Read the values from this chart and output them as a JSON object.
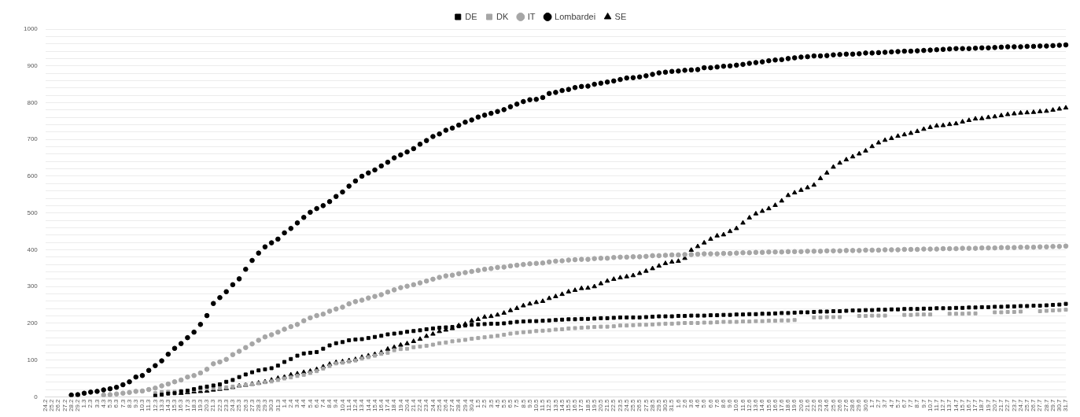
{
  "chart_data": {
    "type": "scatter",
    "legend": "top",
    "grid": "y",
    "categories": [
      "24.2",
      "25.2",
      "26.2",
      "27.2",
      "28.2",
      "29.2",
      "1.3",
      "2.3",
      "3.3",
      "4.3",
      "5.3",
      "6.3",
      "7.3",
      "8.3",
      "9.3",
      "10.3",
      "11.3",
      "12.3",
      "13.3",
      "14.3",
      "15.3",
      "16.3",
      "17.3",
      "18.3",
      "19.3",
      "20.3",
      "21.3",
      "22.3",
      "23.3",
      "24.3",
      "25.3",
      "26.3",
      "27.3",
      "28.3",
      "29.3",
      "30.3",
      "31.3",
      "1.4",
      "2.4",
      "3.4",
      "4.4",
      "5.4",
      "6.4",
      "7.4",
      "8.4",
      "9.4",
      "10.4",
      "11.4",
      "12.4",
      "13.4",
      "14.4",
      "15.4",
      "16.4",
      "17.4",
      "18.4",
      "19.4",
      "20.4",
      "21.4",
      "22.4",
      "23.4",
      "24.4",
      "25.4",
      "26.4",
      "27.4",
      "28.4",
      "29.4",
      "30.4",
      "1.5",
      "2.5",
      "3.5",
      "4.5",
      "5.5",
      "6.5",
      "7.5",
      "8.5",
      "9.5",
      "10.5",
      "11.5",
      "12.5",
      "13.5",
      "14.5",
      "15.5",
      "16.5",
      "17.5",
      "18.5",
      "19.5",
      "20.5",
      "21.5",
      "22.5",
      "23.5",
      "24.5",
      "25.5",
      "26.5",
      "27.5",
      "28.5",
      "29.5",
      "30.5",
      "31.5",
      "1.6",
      "2.6",
      "3.6",
      "4.6",
      "5.6",
      "6.6",
      "7.6",
      "8.6",
      "9.6",
      "10.6",
      "11.6",
      "12.6",
      "13.6",
      "14.6",
      "15.6",
      "16.6",
      "17.6",
      "18.6",
      "19.6",
      "20.6",
      "21.6",
      "22.6",
      "23.6",
      "24.6",
      "25.6",
      "26.6",
      "27.6",
      "28.6",
      "29.6",
      "30.6",
      "1.7",
      "2.7",
      "3.7",
      "4.7",
      "5.7",
      "6.7",
      "7.7",
      "8.7",
      "9.7",
      "10.7",
      "11.7",
      "12.7",
      "13.7",
      "14.7",
      "15.7",
      "16.7",
      "17.7",
      "18.7",
      "19.7",
      "20.7",
      "21.7",
      "22.7",
      "23.7",
      "24.7",
      "25.7",
      "26.7",
      "27.7",
      "28.7",
      "29.7",
      "30.7",
      "31.7"
    ],
    "ylim": [
      0,
      1000
    ],
    "yticks": [
      0,
      {
        "value": 20,
        "label": null
      },
      {
        "value": 40,
        "label": null
      },
      {
        "value": 60,
        "label": null
      },
      {
        "value": 80,
        "label": null
      },
      100,
      {
        "value": 120,
        "label": null
      },
      {
        "value": 140,
        "label": null
      },
      {
        "value": 160,
        "label": null
      },
      {
        "value": 180,
        "label": null
      },
      200,
      {
        "value": 220,
        "label": null
      },
      {
        "value": 240,
        "label": null
      },
      {
        "value": 260,
        "label": null
      },
      {
        "value": 280,
        "label": null
      },
      300,
      {
        "value": 320,
        "label": null
      },
      {
        "value": 340,
        "label": null
      },
      {
        "value": 360,
        "label": null
      },
      {
        "value": 380,
        "label": null
      },
      400,
      {
        "value": 420,
        "label": null
      },
      {
        "value": 440,
        "label": null
      },
      {
        "value": 460,
        "label": null
      },
      {
        "value": 480,
        "label": null
      },
      500,
      {
        "value": 520,
        "label": null
      },
      {
        "value": 540,
        "label": null
      },
      {
        "value": 560,
        "label": null
      },
      {
        "value": 580,
        "label": null
      },
      600,
      {
        "value": 620,
        "label": null
      },
      {
        "value": 640,
        "label": null
      },
      {
        "value": 660,
        "label": null
      },
      {
        "value": 680,
        "label": null
      },
      700,
      {
        "value": 720,
        "label": null
      },
      {
        "value": 740,
        "label": null
      },
      {
        "value": 760,
        "label": null
      },
      {
        "value": 780,
        "label": null
      },
      800,
      {
        "value": 820,
        "label": null
      },
      {
        "value": 840,
        "label": null
      },
      {
        "value": 860,
        "label": null
      },
      {
        "value": 880,
        "label": null
      },
      900,
      {
        "value": 920,
        "label": null
      },
      {
        "value": 940,
        "label": null
      },
      {
        "value": 960,
        "label": null
      },
      {
        "value": 980,
        "label": null
      },
      1000
    ],
    "series": [
      {
        "name": "DE",
        "color": "#000000",
        "marker": "square",
        "values": [
          null,
          null,
          null,
          null,
          null,
          null,
          null,
          null,
          null,
          null,
          null,
          null,
          null,
          null,
          null,
          null,
          null,
          3,
          6,
          9,
          10,
          15,
          17,
          21,
          25,
          28,
          31,
          34,
          41,
          46,
          54,
          61,
          67,
          72,
          75,
          78,
          85,
          95,
          103,
          112,
          118,
          120,
          122,
          131,
          140,
          146,
          149,
          154,
          156,
          157,
          160,
          163,
          166,
          170,
          172,
          174,
          177,
          179,
          181,
          184,
          186,
          188,
          189,
          190,
          192,
          194,
          196,
          197,
          198,
          199,
          199,
          200,
          202,
          204,
          205,
          206,
          206,
          207,
          208,
          209,
          210,
          211,
          211,
          212,
          212,
          213,
          214,
          214,
          215,
          216,
          216,
          216,
          216,
          217,
          218,
          219,
          219,
          219,
          220,
          220,
          221,
          221,
          221,
          222,
          222,
          223,
          223,
          224,
          224,
          225,
          225,
          226,
          226,
          227,
          228,
          228,
          229,
          230,
          230,
          231,
          232,
          232,
          233,
          233,
          234,
          235,
          235,
          236,
          236,
          237,
          237,
          238,
          238,
          239,
          239,
          239,
          240,
          240,
          241,
          241,
          241,
          242,
          242,
          243,
          243,
          244,
          244,
          245,
          245,
          246,
          246,
          247,
          247,
          248,
          248,
          249,
          250,
          251,
          253
        ]
      },
      {
        "name": "DK",
        "color": "#a6a6a6",
        "marker": "square",
        "values": [
          null,
          null,
          null,
          null,
          null,
          null,
          null,
          null,
          null,
          null,
          null,
          null,
          null,
          null,
          null,
          null,
          null,
          10,
          13,
          14,
          14,
          16,
          16,
          19,
          21,
          23,
          24,
          24,
          26,
          28,
          30,
          33,
          34,
          37,
          40,
          42,
          46,
          50,
          53,
          57,
          60,
          65,
          70,
          77,
          84,
          91,
          93,
          96,
          99,
          104,
          108,
          112,
          117,
          120,
          127,
          130,
          131,
          135,
          137,
          139,
          142,
          146,
          148,
          151,
          153,
          155,
          158,
          160,
          162,
          164,
          166,
          169,
          172,
          174,
          176,
          177,
          179,
          180,
          181,
          183,
          184,
          186,
          187,
          188,
          189,
          190,
          191,
          191,
          192,
          194,
          194,
          195,
          196,
          196,
          197,
          198,
          199,
          199,
          200,
          201,
          201,
          201,
          202,
          202,
          203,
          204,
          204,
          204,
          205,
          205,
          206,
          206,
          207,
          207,
          208,
          208,
          209,
          null,
          null,
          216,
          216,
          217,
          217,
          217,
          null,
          null,
          220,
          220,
          221,
          221,
          221,
          null,
          null,
          223,
          223,
          224,
          224,
          224,
          null,
          null,
          226,
          226,
          226,
          227,
          227,
          null,
          null,
          230,
          230,
          231,
          231,
          232,
          null,
          null,
          233,
          234,
          235,
          236,
          237
        ]
      },
      {
        "name": "IT",
        "color": "#a6a6a6",
        "marker": "circle",
        "values": [
          null,
          null,
          null,
          null,
          null,
          null,
          null,
          null,
          null,
          5,
          6,
          8,
          10,
          12,
          15,
          16,
          20,
          24,
          30,
          35,
          41,
          46,
          54,
          58,
          65,
          75,
          90,
          95,
          102,
          115,
          124,
          134,
          144,
          154,
          163,
          169,
          176,
          184,
          191,
          197,
          207,
          215,
          221,
          225,
          233,
          239,
          244,
          253,
          259,
          263,
          269,
          273,
          278,
          285,
          291,
          297,
          301,
          305,
          310,
          315,
          320,
          325,
          329,
          331,
          335,
          338,
          341,
          344,
          347,
          349,
          352,
          353,
          356,
          358,
          360,
          362,
          363,
          364,
          367,
          369,
          370,
          372,
          373,
          374,
          374,
          376,
          377,
          377,
          379,
          380,
          380,
          381,
          381,
          382,
          384,
          384,
          385,
          386,
          386,
          387,
          387,
          388,
          389,
          389,
          389,
          390,
          390,
          391,
          392,
          392,
          393,
          393,
          394,
          394,
          394,
          395,
          395,
          395,
          396,
          396,
          396,
          397,
          397,
          397,
          398,
          398,
          398,
          399,
          399,
          399,
          400,
          400,
          400,
          401,
          401,
          401,
          402,
          402,
          402,
          403,
          403,
          403,
          404,
          404,
          404,
          405,
          405,
          405,
          406,
          406,
          406,
          407,
          407,
          407,
          408,
          408,
          409,
          409,
          410
        ]
      },
      {
        "name": "Lombardei",
        "color": "#000000",
        "marker": "circle",
        "values": [
          null,
          null,
          null,
          null,
          5,
          6,
          10,
          13,
          15,
          19,
          22,
          26,
          33,
          41,
          54,
          58,
          72,
          85,
          98,
          116,
          132,
          145,
          161,
          176,
          197,
          221,
          254,
          270,
          286,
          305,
          321,
          347,
          371,
          391,
          408,
          419,
          429,
          446,
          458,
          473,
          488,
          502,
          512,
          520,
          531,
          545,
          557,
          573,
          587,
          600,
          609,
          617,
          628,
          638,
          650,
          658,
          666,
          675,
          687,
          697,
          708,
          715,
          725,
          731,
          739,
          747,
          753,
          761,
          766,
          771,
          776,
          781,
          789,
          796,
          803,
          808,
          809,
          814,
          825,
          828,
          833,
          836,
          841,
          844,
          845,
          850,
          853,
          856,
          859,
          863,
          867,
          868,
          870,
          873,
          877,
          881,
          883,
          885,
          886,
          888,
          889,
          890,
          895,
          895,
          897,
          899,
          900,
          902,
          904,
          907,
          909,
          911,
          914,
          916,
          917,
          920,
          922,
          924,
          925,
          927,
          927,
          928,
          930,
          931,
          932,
          932,
          933,
          935,
          935,
          936,
          937,
          938,
          939,
          940,
          940,
          941,
          942,
          943,
          944,
          945,
          946,
          947,
          947,
          947,
          948,
          949,
          949,
          950,
          951,
          952,
          952,
          952,
          953,
          953,
          954,
          954,
          955,
          956,
          957
        ]
      },
      {
        "name": "SE",
        "color": "#000000",
        "marker": "triangle",
        "values": [
          null,
          null,
          null,
          null,
          null,
          null,
          null,
          null,
          null,
          null,
          null,
          null,
          null,
          null,
          null,
          null,
          null,
          null,
          null,
          null,
          null,
          10,
          12,
          14,
          15,
          16,
          19,
          21,
          23,
          26,
          30,
          32,
          35,
          38,
          41,
          46,
          51,
          54,
          60,
          63,
          67,
          70,
          75,
          82,
          89,
          94,
          96,
          99,
          102,
          108,
          112,
          116,
          121,
          130,
          135,
          141,
          145,
          151,
          157,
          165,
          171,
          178,
          182,
          186,
          194,
          198,
          207,
          211,
          217,
          219,
          223,
          228,
          235,
          241,
          248,
          253,
          257,
          260,
          268,
          273,
          279,
          286,
          290,
          295,
          296,
          300,
          308,
          315,
          320,
          324,
          327,
          330,
          336,
          342,
          349,
          356,
          363,
          367,
          369,
          377,
          399,
          409,
          419,
          429,
          438,
          441,
          450,
          458,
          473,
          487,
          498,
          505,
          512,
          521,
          533,
          548,
          555,
          562,
          569,
          576,
          594,
          609,
          625,
          636,
          645,
          653,
          661,
          669,
          681,
          691,
          698,
          703,
          709,
          713,
          717,
          722,
          728,
          733,
          737,
          738,
          741,
          743,
          748,
          752,
          756,
          757,
          760,
          762,
          765,
          768,
          770,
          772,
          773,
          774,
          776,
          777,
          780,
          783,
          786
        ]
      }
    ]
  }
}
